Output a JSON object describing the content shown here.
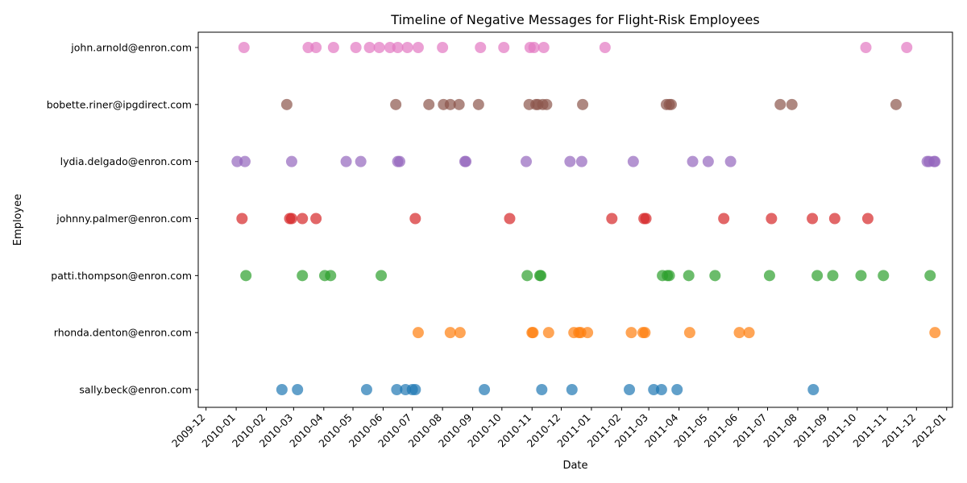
{
  "chart_data": {
    "type": "scatter",
    "title": "Timeline of Negative Messages for Flight-Risk Employees",
    "xlabel": "Date",
    "ylabel": "Employee",
    "xlim": [
      "2009-11-23",
      "2012-01-07"
    ],
    "grid": false,
    "legend": "none",
    "x_ticks": [
      "2009-12-01",
      "2010-01-01",
      "2010-02-01",
      "2010-03-01",
      "2010-04-01",
      "2010-05-01",
      "2010-06-01",
      "2010-07-01",
      "2010-08-01",
      "2010-09-01",
      "2010-10-01",
      "2010-11-01",
      "2010-12-01",
      "2011-01-01",
      "2011-02-01",
      "2011-03-01",
      "2011-04-01",
      "2011-05-01",
      "2011-06-01",
      "2011-07-01",
      "2011-08-01",
      "2011-09-01",
      "2011-10-01",
      "2011-11-01",
      "2011-12-01",
      "2012-01-01"
    ],
    "x_tick_labels": [
      "2009-12",
      "2010-01",
      "2010-02",
      "2010-03",
      "2010-04",
      "2010-05",
      "2010-06",
      "2010-07",
      "2010-08",
      "2010-09",
      "2010-10",
      "2010-11",
      "2010-12",
      "2011-01",
      "2011-02",
      "2011-03",
      "2011-04",
      "2011-05",
      "2011-06",
      "2011-07",
      "2011-08",
      "2011-09",
      "2011-10",
      "2011-11",
      "2011-12",
      "2012-01"
    ],
    "categories": [
      "sally.beck@enron.com",
      "rhonda.denton@enron.com",
      "patti.thompson@enron.com",
      "johnny.palmer@enron.com",
      "lydia.delgado@enron.com",
      "bobette.riner@ipgdirect.com",
      "john.arnold@enron.com"
    ],
    "series": [
      {
        "category": "sally.beck@enron.com",
        "color": "#1f77b4",
        "dates": [
          "2010-02-17",
          "2010-03-05",
          "2010-05-15",
          "2010-06-15",
          "2010-06-24",
          "2010-07-01",
          "2010-07-04",
          "2010-09-13",
          "2010-11-11",
          "2010-12-12",
          "2011-02-09",
          "2011-03-06",
          "2011-03-14",
          "2011-03-30",
          "2011-08-17"
        ]
      },
      {
        "category": "rhonda.denton@enron.com",
        "color": "#ff7f0e",
        "dates": [
          "2010-07-07",
          "2010-08-09",
          "2010-08-19",
          "2010-11-01",
          "2010-11-02",
          "2010-11-18",
          "2010-12-14",
          "2010-12-19",
          "2010-12-21",
          "2010-12-28",
          "2011-02-11",
          "2011-02-23",
          "2011-02-25",
          "2011-04-12",
          "2011-06-02",
          "2011-06-12",
          "2011-12-20"
        ]
      },
      {
        "category": "patti.thompson@enron.com",
        "color": "#2ca02c",
        "dates": [
          "2010-01-11",
          "2010-03-10",
          "2010-04-02",
          "2010-04-08",
          "2010-05-30",
          "2010-10-27",
          "2010-11-09",
          "2010-11-10",
          "2011-03-15",
          "2011-03-20",
          "2011-03-22",
          "2011-04-11",
          "2011-05-08",
          "2011-07-03",
          "2011-08-21",
          "2011-09-06",
          "2011-10-05",
          "2011-10-28",
          "2011-12-15"
        ]
      },
      {
        "category": "johnny.palmer@enron.com",
        "color": "#d62728",
        "dates": [
          "2010-01-07",
          "2010-02-25",
          "2010-02-27",
          "2010-03-10",
          "2010-03-24",
          "2010-07-04",
          "2010-10-09",
          "2011-01-22",
          "2011-02-24",
          "2011-02-26",
          "2011-05-17",
          "2011-07-05",
          "2011-08-16",
          "2011-09-08",
          "2011-10-12"
        ]
      },
      {
        "category": "lydia.delgado@enron.com",
        "color": "#9467bd",
        "dates": [
          "2010-01-02",
          "2010-01-10",
          "2010-02-27",
          "2010-04-24",
          "2010-05-09",
          "2010-06-16",
          "2010-06-18",
          "2010-08-24",
          "2010-08-25",
          "2010-10-26",
          "2010-12-10",
          "2010-12-22",
          "2011-02-13",
          "2011-04-15",
          "2011-05-01",
          "2011-05-24",
          "2011-12-12",
          "2011-12-14",
          "2011-12-19",
          "2011-12-20"
        ]
      },
      {
        "category": "bobette.riner@ipgdirect.com",
        "color": "#8c564b",
        "dates": [
          "2010-02-22",
          "2010-06-14",
          "2010-07-18",
          "2010-08-02",
          "2010-08-09",
          "2010-08-18",
          "2010-09-07",
          "2010-10-29",
          "2010-11-05",
          "2010-11-07",
          "2010-11-12",
          "2010-11-16",
          "2010-12-23",
          "2011-03-19",
          "2011-03-22",
          "2011-03-24",
          "2011-07-14",
          "2011-07-26",
          "2011-11-10"
        ]
      },
      {
        "category": "john.arnold@enron.com",
        "color": "#e377c2",
        "dates": [
          "2010-01-09",
          "2010-03-16",
          "2010-03-24",
          "2010-04-11",
          "2010-05-04",
          "2010-05-18",
          "2010-05-28",
          "2010-06-08",
          "2010-06-16",
          "2010-06-26",
          "2010-07-07",
          "2010-08-01",
          "2010-09-09",
          "2010-10-03",
          "2010-10-30",
          "2010-11-03",
          "2010-11-13",
          "2011-01-15",
          "2011-10-10",
          "2011-11-21"
        ]
      }
    ]
  }
}
